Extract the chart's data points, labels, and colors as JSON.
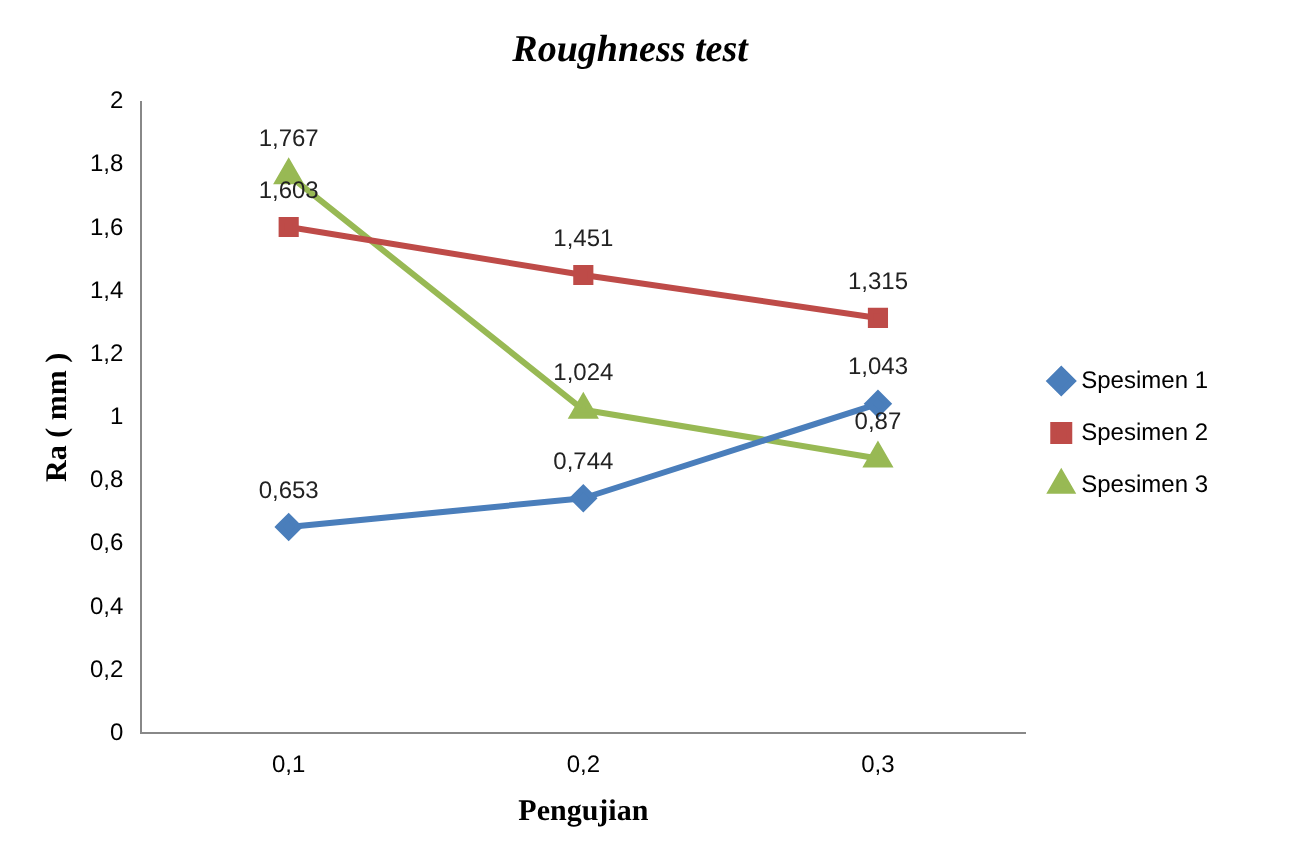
{
  "chart_data": {
    "type": "line",
    "title": "Roughness test",
    "xlabel": "Pengujian",
    "ylabel": "Ra ( mm )",
    "categories": [
      "0,1",
      "0,2",
      "0,3"
    ],
    "series": [
      {
        "name": "Spesimen 1",
        "color": "#4a7ebb",
        "marker": "diamond",
        "values": [
          0.653,
          0.744,
          1.043
        ],
        "value_labels": [
          "0,653",
          "0,744",
          "1,043"
        ]
      },
      {
        "name": "Spesimen 2",
        "color": "#be4b48",
        "marker": "square",
        "values": [
          1.603,
          1.451,
          1.315
        ],
        "value_labels": [
          "1,603",
          "1,451",
          "1,315"
        ]
      },
      {
        "name": "Spesimen 3",
        "color": "#98b954",
        "marker": "triangle",
        "values": [
          1.767,
          1.024,
          0.87
        ],
        "value_labels": [
          "1,767",
          "1,024",
          "0,87"
        ]
      }
    ],
    "ylim": [
      0,
      2
    ],
    "yticks": [
      0,
      {
        "value": 0.2,
        "label": "0,2"
      },
      {
        "value": 0.4,
        "label": "0,4"
      },
      {
        "value": 0.6,
        "label": "0,6"
      },
      {
        "value": 0.8,
        "label": "0,8"
      },
      1,
      {
        "value": 1.2,
        "label": "1,2"
      },
      {
        "value": 1.4,
        "label": "1,4"
      },
      {
        "value": 1.6,
        "label": "1,6"
      },
      {
        "value": 1.8,
        "label": "1,8"
      },
      2
    ],
    "grid": false,
    "legend": "right",
    "line_style": "solid"
  }
}
